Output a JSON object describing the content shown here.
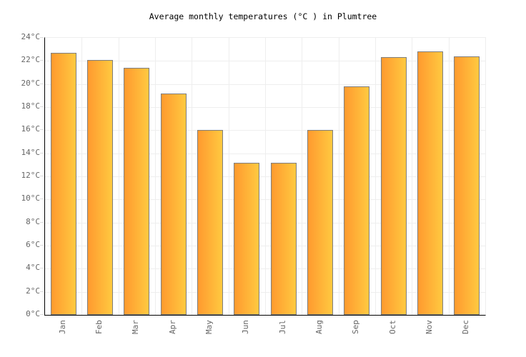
{
  "title": "Average monthly temperatures (°C ) in Plumtree",
  "colors": {
    "bar_gradient_left": "#FF9A2F",
    "bar_gradient_right": "#FFC940",
    "bar_border": "#7E7E7E",
    "axis_line": "#000000",
    "gridline": "#EEEEEE",
    "tick_stub": "#DDDDDD",
    "tick_label": "#666666",
    "title_text": "#000000"
  },
  "chart_data": {
    "type": "bar",
    "title": "Average monthly temperatures (°C ) in Plumtree",
    "categories": [
      "Jan",
      "Feb",
      "Mar",
      "Apr",
      "May",
      "Jun",
      "Jul",
      "Aug",
      "Sep",
      "Oct",
      "Nov",
      "Dec"
    ],
    "values": [
      22.7,
      22.1,
      21.4,
      19.2,
      16.0,
      13.2,
      13.2,
      16.0,
      19.8,
      22.3,
      22.8,
      22.4
    ],
    "xlabel": "",
    "ylabel": "",
    "ylim": [
      0,
      24
    ],
    "ytick_step": 2,
    "ytick_suffix": "°C",
    "grid": true,
    "legend": "none"
  }
}
